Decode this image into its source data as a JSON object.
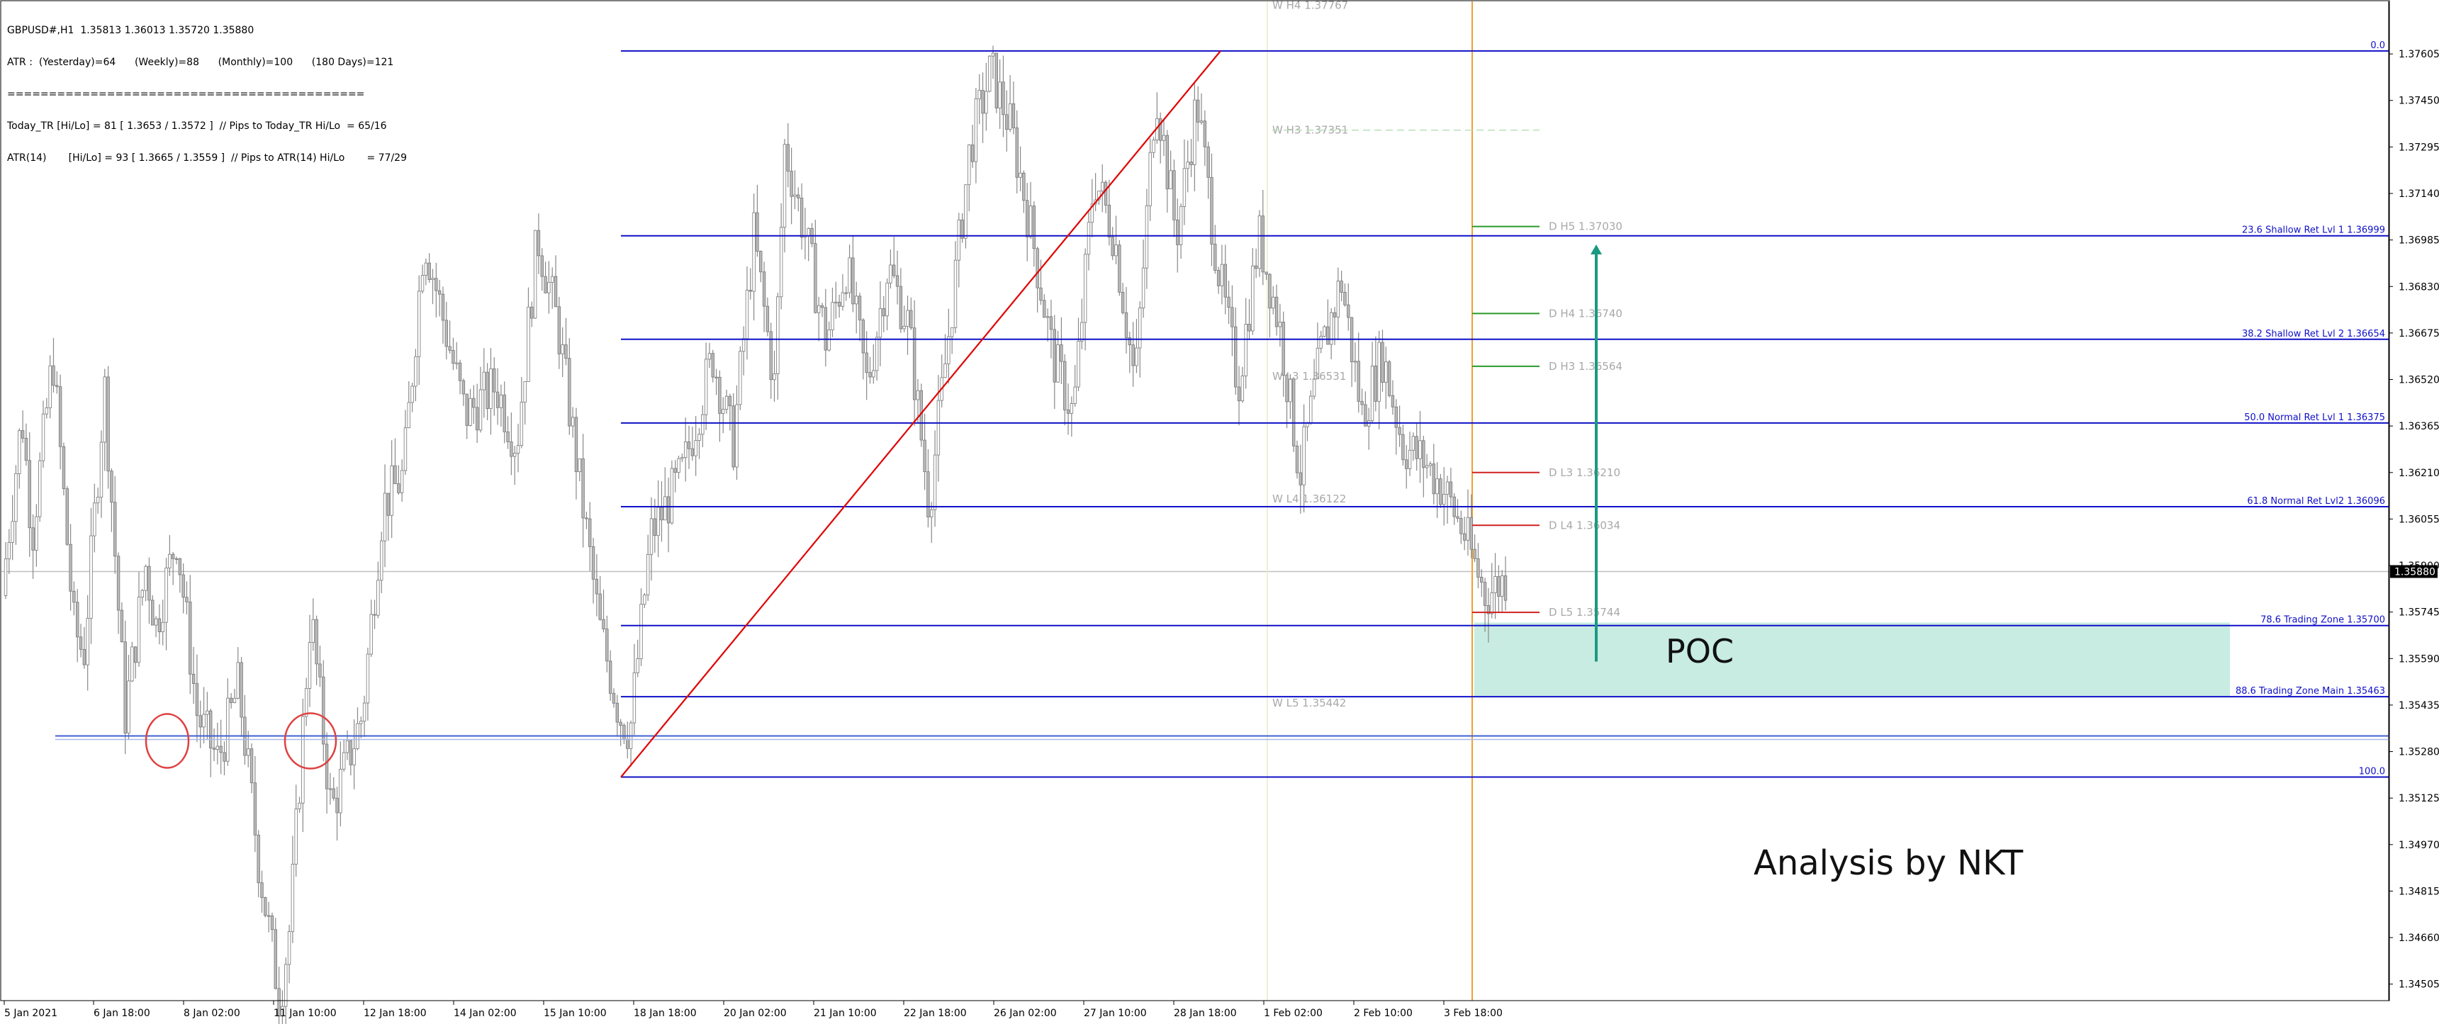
{
  "header": {
    "symbol_line": "GBPUSD#,H1  1.35813 1.36013 1.35720 1.35880",
    "atr_line": "ATR :  (Yesterday)=64      (Weekly)=88      (Monthly)=100      (180 Days)=121",
    "separator_line": "===========================================",
    "today_line": "Today_TR [Hi/Lo] = 81 [ 1.3653 / 1.3572 ]  // Pips to Today_TR Hi/Lo  = 65/16",
    "atr14_line": "ATR(14)       [Hi/Lo] = 93 [ 1.3665 / 1.3559 ]  // Pips to ATR(14) Hi/Lo       = 77/29"
  },
  "annotations": {
    "poc_label": "POC",
    "author_label": "Analysis by NKT"
  },
  "colors": {
    "fib_line": "#1010c8",
    "trend_line": "#e00000",
    "candles": "#888888",
    "poc_zone": "#c8ece2",
    "arrow": "#1a9a80",
    "current_time": "#f0a030",
    "circle": "#e04040"
  },
  "chart_data": {
    "type": "candlestick",
    "symbol": "GBPUSD#",
    "timeframe": "H1",
    "ylim": [
      1.3445,
      1.3778
    ],
    "last_price": "1.35880",
    "y_ticks": [
      "1.37605",
      "1.37450",
      "1.37295",
      "1.37140",
      "1.36985",
      "1.36830",
      "1.36675",
      "1.36520",
      "1.36365",
      "1.36210",
      "1.36055",
      "1.35900",
      "1.35745",
      "1.35590",
      "1.35435",
      "1.35280",
      "1.35125",
      "1.34970",
      "1.34815",
      "1.34660",
      "1.34505"
    ],
    "x_ticks": [
      "5 Jan 2021",
      "6 Jan 18:00",
      "8 Jan 02:00",
      "11 Jan 10:00",
      "12 Jan 18:00",
      "14 Jan 02:00",
      "15 Jan 10:00",
      "18 Jan 18:00",
      "20 Jan 02:00",
      "21 Jan 10:00",
      "22 Jan 18:00",
      "26 Jan 02:00",
      "27 Jan 10:00",
      "28 Jan 18:00",
      "1 Feb 02:00",
      "2 Feb 10:00",
      "3 Feb 18:00"
    ],
    "price_path": [
      {
        "t": 0,
        "p": 1.358
      },
      {
        "t": 2,
        "p": 1.364
      },
      {
        "t": 3,
        "p": 1.36
      },
      {
        "t": 5,
        "p": 1.366
      },
      {
        "t": 7,
        "p": 1.357
      },
      {
        "t": 8,
        "p": 1.356
      },
      {
        "t": 10,
        "p": 1.365
      },
      {
        "t": 12,
        "p": 1.354
      },
      {
        "t": 14,
        "p": 1.359
      },
      {
        "t": 15,
        "p": 1.357
      },
      {
        "t": 17,
        "p": 1.36
      },
      {
        "t": 19,
        "p": 1.354
      },
      {
        "t": 21,
        "p": 1.3525
      },
      {
        "t": 23,
        "p": 1.355
      },
      {
        "t": 25,
        "p": 1.349
      },
      {
        "t": 27,
        "p": 1.3445
      },
      {
        "t": 28,
        "p": 1.347
      },
      {
        "t": 30,
        "p": 1.3575
      },
      {
        "t": 32,
        "p": 1.3508
      },
      {
        "t": 35,
        "p": 1.354
      },
      {
        "t": 37,
        "p": 1.361
      },
      {
        "t": 39,
        "p": 1.362
      },
      {
        "t": 41,
        "p": 1.37
      },
      {
        "t": 43,
        "p": 1.367
      },
      {
        "t": 45,
        "p": 1.364
      },
      {
        "t": 48,
        "p": 1.365
      },
      {
        "t": 50,
        "p": 1.363
      },
      {
        "t": 52,
        "p": 1.37
      },
      {
        "t": 54,
        "p": 1.367
      },
      {
        "t": 56,
        "p": 1.362
      },
      {
        "t": 58,
        "p": 1.357
      },
      {
        "t": 60,
        "p": 1.354
      },
      {
        "t": 61,
        "p": 1.3535
      },
      {
        "t": 63,
        "p": 1.36
      },
      {
        "t": 66,
        "p": 1.362
      },
      {
        "t": 69,
        "p": 1.366
      },
      {
        "t": 71,
        "p": 1.363
      },
      {
        "t": 73,
        "p": 1.37
      },
      {
        "t": 75,
        "p": 1.365
      },
      {
        "t": 76,
        "p": 1.373
      },
      {
        "t": 78,
        "p": 1.37
      },
      {
        "t": 80,
        "p": 1.3665
      },
      {
        "t": 82,
        "p": 1.369
      },
      {
        "t": 84,
        "p": 1.365
      },
      {
        "t": 86,
        "p": 1.369
      },
      {
        "t": 88,
        "p": 1.367
      },
      {
        "t": 90,
        "p": 1.361
      },
      {
        "t": 92,
        "p": 1.367
      },
      {
        "t": 94,
        "p": 1.373
      },
      {
        "t": 96,
        "p": 1.3755
      },
      {
        "t": 98,
        "p": 1.3735
      },
      {
        "t": 100,
        "p": 1.37
      },
      {
        "t": 102,
        "p": 1.366
      },
      {
        "t": 104,
        "p": 1.364
      },
      {
        "t": 106,
        "p": 1.372
      },
      {
        "t": 108,
        "p": 1.37
      },
      {
        "t": 110,
        "p": 1.365
      },
      {
        "t": 112,
        "p": 1.375
      },
      {
        "t": 114,
        "p": 1.37
      },
      {
        "t": 116,
        "p": 1.3745
      },
      {
        "t": 118,
        "p": 1.369
      },
      {
        "t": 120,
        "p": 1.365
      },
      {
        "t": 122,
        "p": 1.37
      },
      {
        "t": 124,
        "p": 1.367
      },
      {
        "t": 126,
        "p": 1.362
      },
      {
        "t": 128,
        "p": 1.366
      },
      {
        "t": 130,
        "p": 1.3685
      },
      {
        "t": 132,
        "p": 1.364
      },
      {
        "t": 134,
        "p": 1.366
      },
      {
        "t": 136,
        "p": 1.363
      },
      {
        "t": 138,
        "p": 1.3625
      },
      {
        "t": 140,
        "p": 1.3615
      },
      {
        "t": 142,
        "p": 1.36
      },
      {
        "t": 144,
        "p": 1.358
      },
      {
        "t": 146,
        "p": 1.3586
      }
    ],
    "price_path_total": 146,
    "fib_levels": [
      {
        "price": 1.37615,
        "label": "0.0"
      },
      {
        "price": 1.36999,
        "label": "23.6 Shallow Ret Lvl 1 1.36999"
      },
      {
        "price": 1.36654,
        "label": "38.2 Shallow Ret Lvl 2 1.36654"
      },
      {
        "price": 1.36375,
        "label": "50.0 Normal Ret Lvl 1 1.36375"
      },
      {
        "price": 1.36096,
        "label": "61.8 Normal Ret Lvl2 1.36096"
      },
      {
        "price": 1.357,
        "label": "78.6 Trading Zone 1.35700"
      },
      {
        "price": 1.35463,
        "label": "88.6 Trading Zone Main 1.35463"
      },
      {
        "price": 1.35195,
        "label": "100.0"
      }
    ],
    "horizontal_support": 1.35332,
    "pivot_labels": [
      {
        "price": 1.37767,
        "label": "W  H4 1.37767"
      },
      {
        "price": 1.37351,
        "label": "W  H3 1.37351"
      },
      {
        "price": 1.3703,
        "label": "D  H5 1.37030"
      },
      {
        "price": 1.3674,
        "label": "D  H4 1.36740"
      },
      {
        "price": 1.36564,
        "label": "D  H3 1.36564"
      },
      {
        "price": 1.36531,
        "label": "W  L3 1.36531"
      },
      {
        "price": 1.3621,
        "label": "D  L3 1.36210"
      },
      {
        "price": 1.36122,
        "label": "W  L4 1.36122"
      },
      {
        "price": 1.36034,
        "label": "D  L4 1.36034"
      },
      {
        "price": 1.35744,
        "label": "D  L5 1.35744"
      },
      {
        "price": 1.35442,
        "label": "W  L5 1.35442"
      }
    ],
    "trend_line": {
      "from_price": 1.35195,
      "to_price": 1.37615
    },
    "poc_zone": {
      "top": 1.3571,
      "bottom": 1.35463
    }
  }
}
